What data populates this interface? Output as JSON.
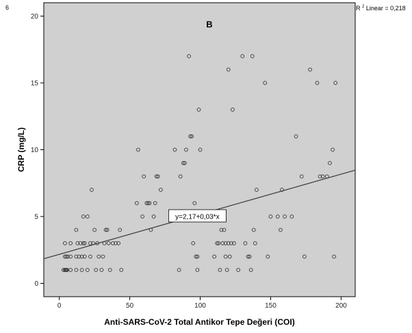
{
  "page": {
    "edge_mark": "6"
  },
  "chart_data": {
    "type": "scatter",
    "panel_label": "B",
    "xlabel": "Anti-SARS-CoV-2 Total Antikor Tepe Değeri (COI)",
    "ylabel": "CRP (mg/L)",
    "xlim": [
      -11,
      210
    ],
    "ylim": [
      -1,
      21
    ],
    "xticks": [
      0,
      50,
      100,
      150,
      200
    ],
    "yticks": [
      0,
      5,
      10,
      15,
      20
    ],
    "grid": false,
    "plot_background": "#d0d0d0",
    "marker_color": "#333333",
    "fit": {
      "intercept": 2.17,
      "slope": 0.03,
      "equation_label": "y=2,17+0,03*x",
      "equation_anchor": [
        98,
        5
      ],
      "r2_prefix": "R",
      "r2_sup": "2",
      "r2_label": " Linear = 0,218"
    },
    "points": [
      [
        3,
        1
      ],
      [
        4,
        1
      ],
      [
        4.5,
        1
      ],
      [
        5,
        1
      ],
      [
        5.5,
        1
      ],
      [
        4,
        2
      ],
      [
        5,
        2
      ],
      [
        6,
        2
      ],
      [
        4,
        3
      ],
      [
        8,
        1
      ],
      [
        8,
        2
      ],
      [
        8,
        3
      ],
      [
        12,
        1
      ],
      [
        12,
        2
      ],
      [
        12,
        4
      ],
      [
        13,
        3
      ],
      [
        14,
        2
      ],
      [
        15,
        3
      ],
      [
        16,
        1
      ],
      [
        16,
        2
      ],
      [
        17,
        3
      ],
      [
        17,
        5
      ],
      [
        18,
        2
      ],
      [
        18,
        3
      ],
      [
        20,
        1
      ],
      [
        20,
        5
      ],
      [
        22,
        2
      ],
      [
        22,
        3
      ],
      [
        23,
        7
      ],
      [
        24,
        3
      ],
      [
        25,
        4
      ],
      [
        26,
        1
      ],
      [
        27,
        3
      ],
      [
        28,
        2
      ],
      [
        30,
        1
      ],
      [
        31,
        2
      ],
      [
        32,
        3
      ],
      [
        33,
        4
      ],
      [
        34,
        4
      ],
      [
        35,
        3
      ],
      [
        36,
        1
      ],
      [
        38,
        3
      ],
      [
        40,
        3
      ],
      [
        42,
        3
      ],
      [
        43,
        4
      ],
      [
        44,
        1
      ],
      [
        55,
        6
      ],
      [
        56,
        10
      ],
      [
        59,
        5
      ],
      [
        60,
        8
      ],
      [
        62,
        6
      ],
      [
        63,
        6
      ],
      [
        64,
        6
      ],
      [
        65,
        4
      ],
      [
        67,
        5
      ],
      [
        68,
        6
      ],
      [
        69,
        8
      ],
      [
        70,
        8
      ],
      [
        72,
        7
      ],
      [
        82,
        10
      ],
      [
        85,
        1
      ],
      [
        86,
        8
      ],
      [
        88,
        9
      ],
      [
        89,
        9
      ],
      [
        90,
        10
      ],
      [
        92,
        17
      ],
      [
        93,
        11
      ],
      [
        94,
        11
      ],
      [
        95,
        3
      ],
      [
        96,
        6
      ],
      [
        97,
        2
      ],
      [
        98,
        2
      ],
      [
        98,
        1
      ],
      [
        99,
        13
      ],
      [
        100,
        10
      ],
      [
        110,
        2
      ],
      [
        112,
        3
      ],
      [
        113,
        3
      ],
      [
        114,
        1
      ],
      [
        115,
        4
      ],
      [
        116,
        3
      ],
      [
        117,
        4
      ],
      [
        118,
        2
      ],
      [
        118,
        3
      ],
      [
        119,
        1
      ],
      [
        120,
        16
      ],
      [
        120,
        3
      ],
      [
        121,
        2
      ],
      [
        122,
        3
      ],
      [
        123,
        13
      ],
      [
        124,
        3
      ],
      [
        127,
        1
      ],
      [
        130,
        17
      ],
      [
        132,
        3
      ],
      [
        134,
        2
      ],
      [
        135,
        2
      ],
      [
        136,
        1
      ],
      [
        137,
        17
      ],
      [
        138,
        4
      ],
      [
        139,
        3
      ],
      [
        140,
        7
      ],
      [
        146,
        15
      ],
      [
        148,
        2
      ],
      [
        150,
        5
      ],
      [
        155,
        5
      ],
      [
        157,
        4
      ],
      [
        158,
        7
      ],
      [
        160,
        5
      ],
      [
        165,
        5
      ],
      [
        168,
        11
      ],
      [
        172,
        8
      ],
      [
        174,
        2
      ],
      [
        178,
        16
      ],
      [
        183,
        15
      ],
      [
        185,
        8
      ],
      [
        187,
        8
      ],
      [
        190,
        8
      ],
      [
        192,
        9
      ],
      [
        194,
        10
      ],
      [
        195,
        2
      ],
      [
        196,
        15
      ]
    ]
  }
}
